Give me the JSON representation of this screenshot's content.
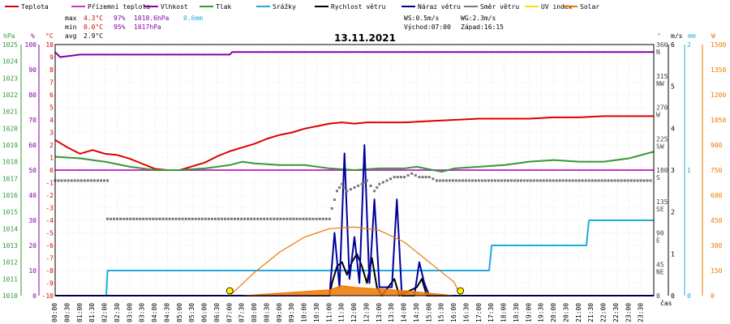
{
  "legend": [
    {
      "label": "Teplota",
      "color": "#dd0000"
    },
    {
      "label": "Přízemní teplota",
      "color": "#cc33cc"
    },
    {
      "label": "Vlhkost",
      "color": "#8800aa"
    },
    {
      "label": "Tlak",
      "color": "#339933"
    },
    {
      "label": "Srážky",
      "color": "#22aadd"
    },
    {
      "label": "Rychlost větru",
      "color": "#000000"
    },
    {
      "label": "Náraz větru",
      "color": "#000099"
    },
    {
      "label": "Směr větru",
      "color": "#777777"
    },
    {
      "label": "UV index",
      "color": "#ffdd00"
    },
    {
      "label": "Solar",
      "color": "#ee7700"
    }
  ],
  "stats": {
    "max": {
      "label": "max",
      "temp": "4.3°C",
      "hum": "97%",
      "press": "1018.6hPa",
      "rain": "0.6mm"
    },
    "min": {
      "label": "min",
      "temp": "0.0°C",
      "hum": "95%",
      "press": "1017hPa"
    },
    "avg": {
      "label": "avg",
      "temp": "2.9°C"
    }
  },
  "wind_info": {
    "ws": "WS:0.5m/s",
    "wg": "WG:2.3m/s",
    "sunrise": "Východ:07:00",
    "sunset": "Západ:16:15"
  },
  "title": "13.11.2021",
  "axes": {
    "hpa_unit": "hPa",
    "pct_unit": "%",
    "temp_unit": "°C",
    "dir_unit": "°",
    "ms_unit": "m/s",
    "mm_unit": "mm",
    "w_unit": "W",
    "x_label": "čas"
  },
  "chart_data": {
    "type": "line",
    "title": "13.11.2021",
    "x_ticks": [
      "00:00",
      "00:30",
      "01:00",
      "01:30",
      "02:00",
      "02:30",
      "03:00",
      "03:30",
      "04:00",
      "04:30",
      "05:00",
      "05:30",
      "06:00",
      "06:30",
      "07:00",
      "07:30",
      "08:00",
      "08:30",
      "09:00",
      "09:30",
      "10:00",
      "10:30",
      "11:00",
      "11:30",
      "12:00",
      "12:30",
      "13:00",
      "13:30",
      "14:00",
      "14:30",
      "15:00",
      "15:30",
      "16:00",
      "16:30",
      "17:00",
      "17:30",
      "18:00",
      "18:30",
      "19:00",
      "19:30",
      "20:00",
      "20:30",
      "21:00",
      "21:30",
      "22:00",
      "22:30",
      "23:00",
      "23:30"
    ],
    "axis_hpa": {
      "ticks": [
        "1025",
        "1024",
        "1023",
        "1022",
        "1021",
        "1020",
        "1019",
        "1018",
        "1017",
        "1016",
        "1015",
        "1014",
        "1013",
        "1012",
        "1011",
        "1010"
      ],
      "ylim": [
        1010,
        1025
      ]
    },
    "axis_pct": {
      "ticks": [
        "100",
        "90",
        "80",
        "70",
        "60",
        "50",
        "40",
        "30",
        "20",
        "10",
        "0"
      ],
      "ylim": [
        0,
        100
      ]
    },
    "axis_temp": {
      "ticks": [
        "10",
        "9",
        "8",
        "7",
        "6",
        "5",
        "4",
        "3",
        "2",
        "1",
        "0",
        "-1",
        "-2",
        "-3",
        "-4",
        "-5",
        "-6",
        "-7",
        "-8",
        "-9",
        "-10"
      ],
      "ylim": [
        -10,
        10
      ]
    },
    "axis_dir": {
      "ticks": [
        {
          "deg": "360",
          "dir": "N"
        },
        {
          "deg": "315",
          "dir": "NW"
        },
        {
          "deg": "270",
          "dir": "W"
        },
        {
          "deg": "225",
          "dir": "SW"
        },
        {
          "deg": "180",
          "dir": "S"
        },
        {
          "deg": "135",
          "dir": "SE"
        },
        {
          "deg": "90",
          "dir": "E"
        },
        {
          "deg": "45",
          "dir": "NE"
        },
        {
          "deg": "0",
          "dir": ""
        }
      ],
      "ylim": [
        0,
        360
      ]
    },
    "axis_ms": {
      "ticks": [
        "6",
        "5",
        "4",
        "3",
        "2",
        "1",
        "0"
      ],
      "ylim": [
        0,
        6
      ]
    },
    "axis_mm": {
      "ticks": [
        "2",
        "1",
        "0"
      ],
      "ylim": [
        0,
        2
      ]
    },
    "axis_w": {
      "ticks": [
        "1500",
        "1350",
        "1200",
        "1050",
        "900",
        "750",
        "600",
        "450",
        "300",
        "150",
        "0"
      ],
      "ylim": [
        0,
        1500
      ]
    },
    "series": [
      {
        "name": "Teplota",
        "color": "#dd0000",
        "axis": "temp",
        "points": [
          [
            0,
            2.4
          ],
          [
            0.5,
            1.8
          ],
          [
            1,
            1.3
          ],
          [
            1.5,
            1.6
          ],
          [
            2,
            1.3
          ],
          [
            2.5,
            1.2
          ],
          [
            3,
            0.9
          ],
          [
            3.5,
            0.5
          ],
          [
            4,
            0.1
          ],
          [
            4.5,
            0.0
          ],
          [
            5,
            0.0
          ],
          [
            5.5,
            0.3
          ],
          [
            6,
            0.6
          ],
          [
            6.5,
            1.1
          ],
          [
            7,
            1.5
          ],
          [
            7.5,
            1.8
          ],
          [
            8,
            2.1
          ],
          [
            8.5,
            2.5
          ],
          [
            9,
            2.8
          ],
          [
            9.5,
            3.0
          ],
          [
            10,
            3.3
          ],
          [
            10.5,
            3.5
          ],
          [
            11,
            3.7
          ],
          [
            11.5,
            3.8
          ],
          [
            12,
            3.7
          ],
          [
            12.5,
            3.8
          ],
          [
            13,
            3.8
          ],
          [
            14,
            3.8
          ],
          [
            15,
            3.9
          ],
          [
            16,
            4.0
          ],
          [
            17,
            4.1
          ],
          [
            18,
            4.1
          ],
          [
            19,
            4.1
          ],
          [
            20,
            4.2
          ],
          [
            21,
            4.2
          ],
          [
            22,
            4.3
          ],
          [
            23,
            4.3
          ],
          [
            24,
            4.3
          ]
        ]
      },
      {
        "name": "Přízemní teplota",
        "color": "#cc33cc",
        "axis": "temp",
        "points": [
          [
            0,
            0
          ],
          [
            24,
            0
          ]
        ]
      },
      {
        "name": "Vlhkost",
        "color": "#8800aa",
        "axis": "pct",
        "points": [
          [
            0,
            97
          ],
          [
            0.2,
            95
          ],
          [
            1,
            96
          ],
          [
            7,
            96
          ],
          [
            7.1,
            97
          ],
          [
            24,
            97
          ]
        ]
      },
      {
        "name": "Tlak",
        "color": "#339933",
        "axis": "hpa",
        "points": [
          [
            0,
            1018.3
          ],
          [
            1,
            1018.2
          ],
          [
            2,
            1018.0
          ],
          [
            3,
            1017.7
          ],
          [
            4,
            1017.5
          ],
          [
            5,
            1017.5
          ],
          [
            6,
            1017.6
          ],
          [
            7,
            1017.8
          ],
          [
            7.5,
            1018.0
          ],
          [
            8,
            1017.9
          ],
          [
            9,
            1017.8
          ],
          [
            10,
            1017.8
          ],
          [
            11,
            1017.6
          ],
          [
            12,
            1017.5
          ],
          [
            13,
            1017.6
          ],
          [
            14,
            1017.6
          ],
          [
            14.5,
            1017.7
          ],
          [
            15.5,
            1017.4
          ],
          [
            16,
            1017.6
          ],
          [
            17,
            1017.7
          ],
          [
            18,
            1017.8
          ],
          [
            19,
            1018.0
          ],
          [
            20,
            1018.1
          ],
          [
            21,
            1018.0
          ],
          [
            22,
            1018.0
          ],
          [
            23,
            1018.2
          ],
          [
            24,
            1018.6
          ]
        ]
      },
      {
        "name": "Srážky",
        "color": "#22aadd",
        "axis": "mm",
        "points": [
          [
            0,
            0
          ],
          [
            2.05,
            0
          ],
          [
            2.1,
            0.2
          ],
          [
            17.4,
            0.2
          ],
          [
            17.5,
            0.4
          ],
          [
            21.3,
            0.4
          ],
          [
            21.4,
            0.6
          ],
          [
            24,
            0.6
          ]
        ]
      },
      {
        "name": "Rychlost větru",
        "color": "#000000",
        "axis": "ms",
        "points": [
          [
            0,
            0
          ],
          [
            11,
            0
          ],
          [
            11.1,
            0.3
          ],
          [
            11.3,
            0.7
          ],
          [
            11.5,
            0.8
          ],
          [
            11.7,
            0.5
          ],
          [
            11.9,
            0.8
          ],
          [
            12.1,
            1.0
          ],
          [
            12.3,
            0.7
          ],
          [
            12.5,
            0.3
          ],
          [
            12.7,
            0.9
          ],
          [
            12.9,
            0.2
          ],
          [
            13.1,
            0
          ],
          [
            13.6,
            0.4
          ],
          [
            13.8,
            0
          ],
          [
            14.5,
            0.2
          ],
          [
            14.7,
            0.4
          ],
          [
            14.9,
            0
          ],
          [
            24,
            0
          ]
        ]
      },
      {
        "name": "Náraz větru",
        "color": "#000099",
        "axis": "ms",
        "points": [
          [
            0,
            0
          ],
          [
            11,
            0
          ],
          [
            11.2,
            1.5
          ],
          [
            11.4,
            0.2
          ],
          [
            11.6,
            3.4
          ],
          [
            11.8,
            0.4
          ],
          [
            12.0,
            1.4
          ],
          [
            12.2,
            0.3
          ],
          [
            12.4,
            3.6
          ],
          [
            12.6,
            0.3
          ],
          [
            12.8,
            2.3
          ],
          [
            13.0,
            0.2
          ],
          [
            13.5,
            0.2
          ],
          [
            13.7,
            2.3
          ],
          [
            13.9,
            0
          ],
          [
            14.4,
            0
          ],
          [
            14.6,
            0.8
          ],
          [
            14.8,
            0.3
          ],
          [
            15.0,
            0
          ],
          [
            24,
            0
          ]
        ]
      },
      {
        "name": "Směr větru",
        "color": "#777777",
        "axis": "dir",
        "style": "dots",
        "points": [
          [
            0,
            165
          ],
          [
            2.1,
            165
          ],
          [
            2.1,
            110
          ],
          [
            11,
            110
          ],
          [
            11.1,
            125
          ],
          [
            11.3,
            150
          ],
          [
            11.5,
            160
          ],
          [
            11.7,
            150
          ],
          [
            12,
            155
          ],
          [
            12.3,
            160
          ],
          [
            12.5,
            165
          ],
          [
            12.8,
            150
          ],
          [
            13,
            160
          ],
          [
            13.3,
            165
          ],
          [
            13.6,
            170
          ],
          [
            14,
            170
          ],
          [
            14.3,
            175
          ],
          [
            14.6,
            170
          ],
          [
            15,
            170
          ],
          [
            15.3,
            165
          ],
          [
            24,
            165
          ]
        ]
      },
      {
        "name": "Solar",
        "color": "#ee7700",
        "axis": "w",
        "style": "curve",
        "points": [
          [
            7.0,
            0
          ],
          [
            8,
            140
          ],
          [
            9,
            260
          ],
          [
            10,
            350
          ],
          [
            11,
            400
          ],
          [
            12,
            410
          ],
          [
            13,
            390
          ],
          [
            14,
            320
          ],
          [
            15,
            200
          ],
          [
            16,
            80
          ],
          [
            16.25,
            0
          ]
        ]
      },
      {
        "name": "Solar actual",
        "color": "#ee7700",
        "axis": "w",
        "style": "fill",
        "points": [
          [
            7.5,
            0
          ],
          [
            8,
            5
          ],
          [
            9,
            15
          ],
          [
            10,
            25
          ],
          [
            11,
            35
          ],
          [
            11.5,
            60
          ],
          [
            12,
            50
          ],
          [
            12.5,
            45
          ],
          [
            13,
            40
          ],
          [
            14,
            30
          ],
          [
            15,
            15
          ],
          [
            16,
            0
          ]
        ]
      }
    ],
    "sun_markers": [
      {
        "label": "Východ",
        "x": 7.0
      },
      {
        "label": "Západ",
        "x": 16.25
      }
    ]
  }
}
